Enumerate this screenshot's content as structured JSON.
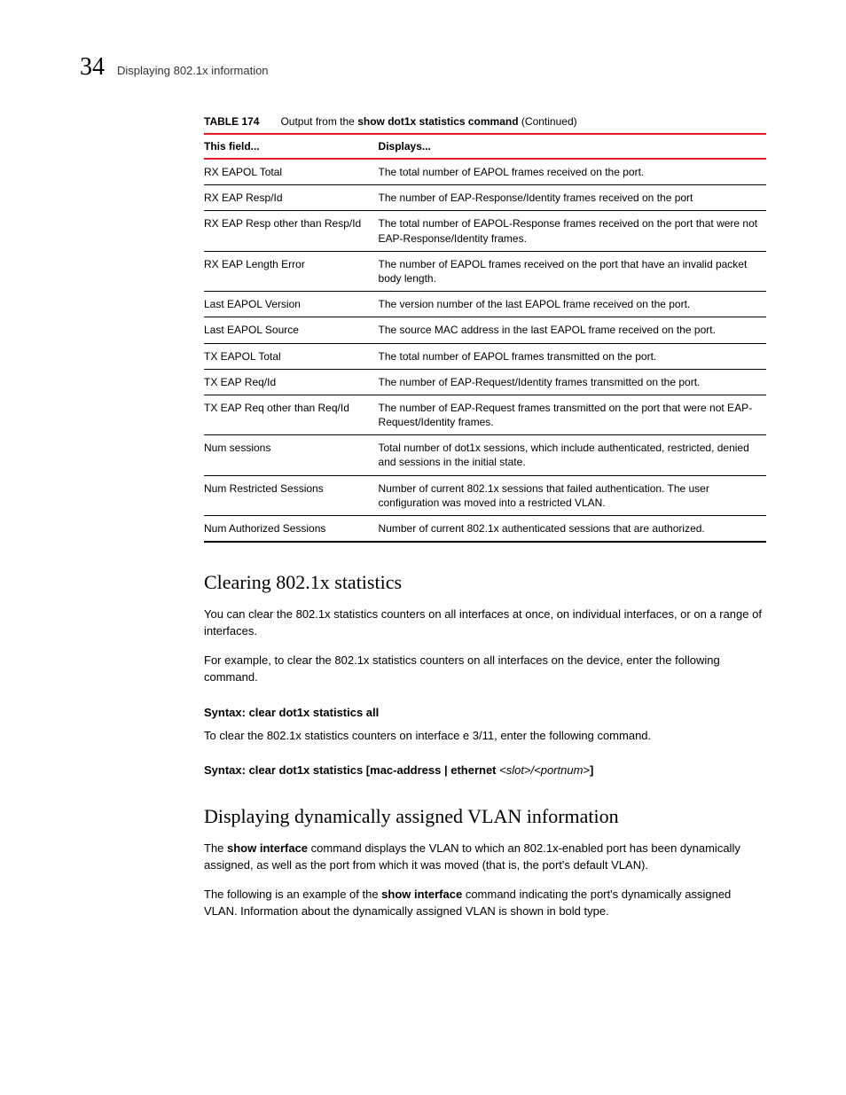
{
  "header": {
    "page_number": "34",
    "section_name": "Displaying 802.1x information"
  },
  "table": {
    "label": "TABLE 174",
    "desc_prefix": "Output from the ",
    "desc_bold": "show dot1x statistics command",
    "desc_suffix": "  (Continued)",
    "columns": [
      "This field...",
      "Displays..."
    ],
    "rows": [
      [
        "RX EAPOL Total",
        "The total number of EAPOL frames received on the port."
      ],
      [
        "RX EAP Resp/Id",
        "The number of EAP-Response/Identity frames received on the port"
      ],
      [
        "RX EAP Resp other than Resp/Id",
        "The total number of EAPOL-Response frames received on the port that were not EAP-Response/Identity frames."
      ],
      [
        "RX EAP Length Error",
        "The number of EAPOL frames received on the port that have an invalid packet body length."
      ],
      [
        "Last EAPOL Version",
        "The version number of the last EAPOL frame received on the port."
      ],
      [
        "Last EAPOL Source",
        "The source MAC address in the last EAPOL frame received on the port."
      ],
      [
        "TX EAPOL Total",
        "The total number of EAPOL frames transmitted on the port."
      ],
      [
        "TX EAP Req/Id",
        "The number of EAP-Request/Identity frames transmitted on the port."
      ],
      [
        "TX EAP Req other than Req/Id",
        "The number of EAP-Request frames transmitted on the port that were not EAP-Request/Identity frames."
      ],
      [
        "Num sessions",
        "Total number of dot1x sessions, which include authenticated, restricted, denied and sessions in the initial state."
      ],
      [
        "Num Restricted Sessions",
        "Number of current 802.1x sessions that failed authentication. The user configuration was moved into a restricted VLAN."
      ],
      [
        "Num Authorized Sessions",
        "Number of current 802.1x authenticated sessions that are authorized."
      ]
    ],
    "border_color_accent": "#e31b23",
    "border_color_body": "#000000"
  },
  "section1": {
    "heading": "Clearing 802.1x statistics",
    "p1": "You can clear the 802.1x statistics counters on all interfaces at once, on individual interfaces, or on a range of interfaces.",
    "p2": "For example, to clear the 802.1x statistics counters on all interfaces on the device, enter the following command.",
    "syntax1_label": "Syntax:",
    "syntax1_cmd": " clear dot1x statistics all",
    "p3": "To clear the 802.1x statistics counters on interface e 3/11, enter the following command.",
    "syntax2_label": "Syntax:",
    "syntax2_prefix": " clear dot1x statistics [mac-address | ethernet ",
    "syntax2_param": "<slot>/<portnum>",
    "syntax2_suffix": "]"
  },
  "section2": {
    "heading": "Displaying dynamically assigned VLAN information",
    "p1_prefix": "The ",
    "p1_bold": "show interface",
    "p1_suffix": " command displays the VLAN to which an 802.1x-enabled port has been dynamically assigned, as well as the port from which it was moved (that is, the port's default VLAN).",
    "p2_prefix": "The following is an example of the ",
    "p2_bold": "show interface",
    "p2_suffix": " command indicating the port's dynamically assigned VLAN.  Information about the dynamically assigned VLAN is shown in bold type."
  }
}
